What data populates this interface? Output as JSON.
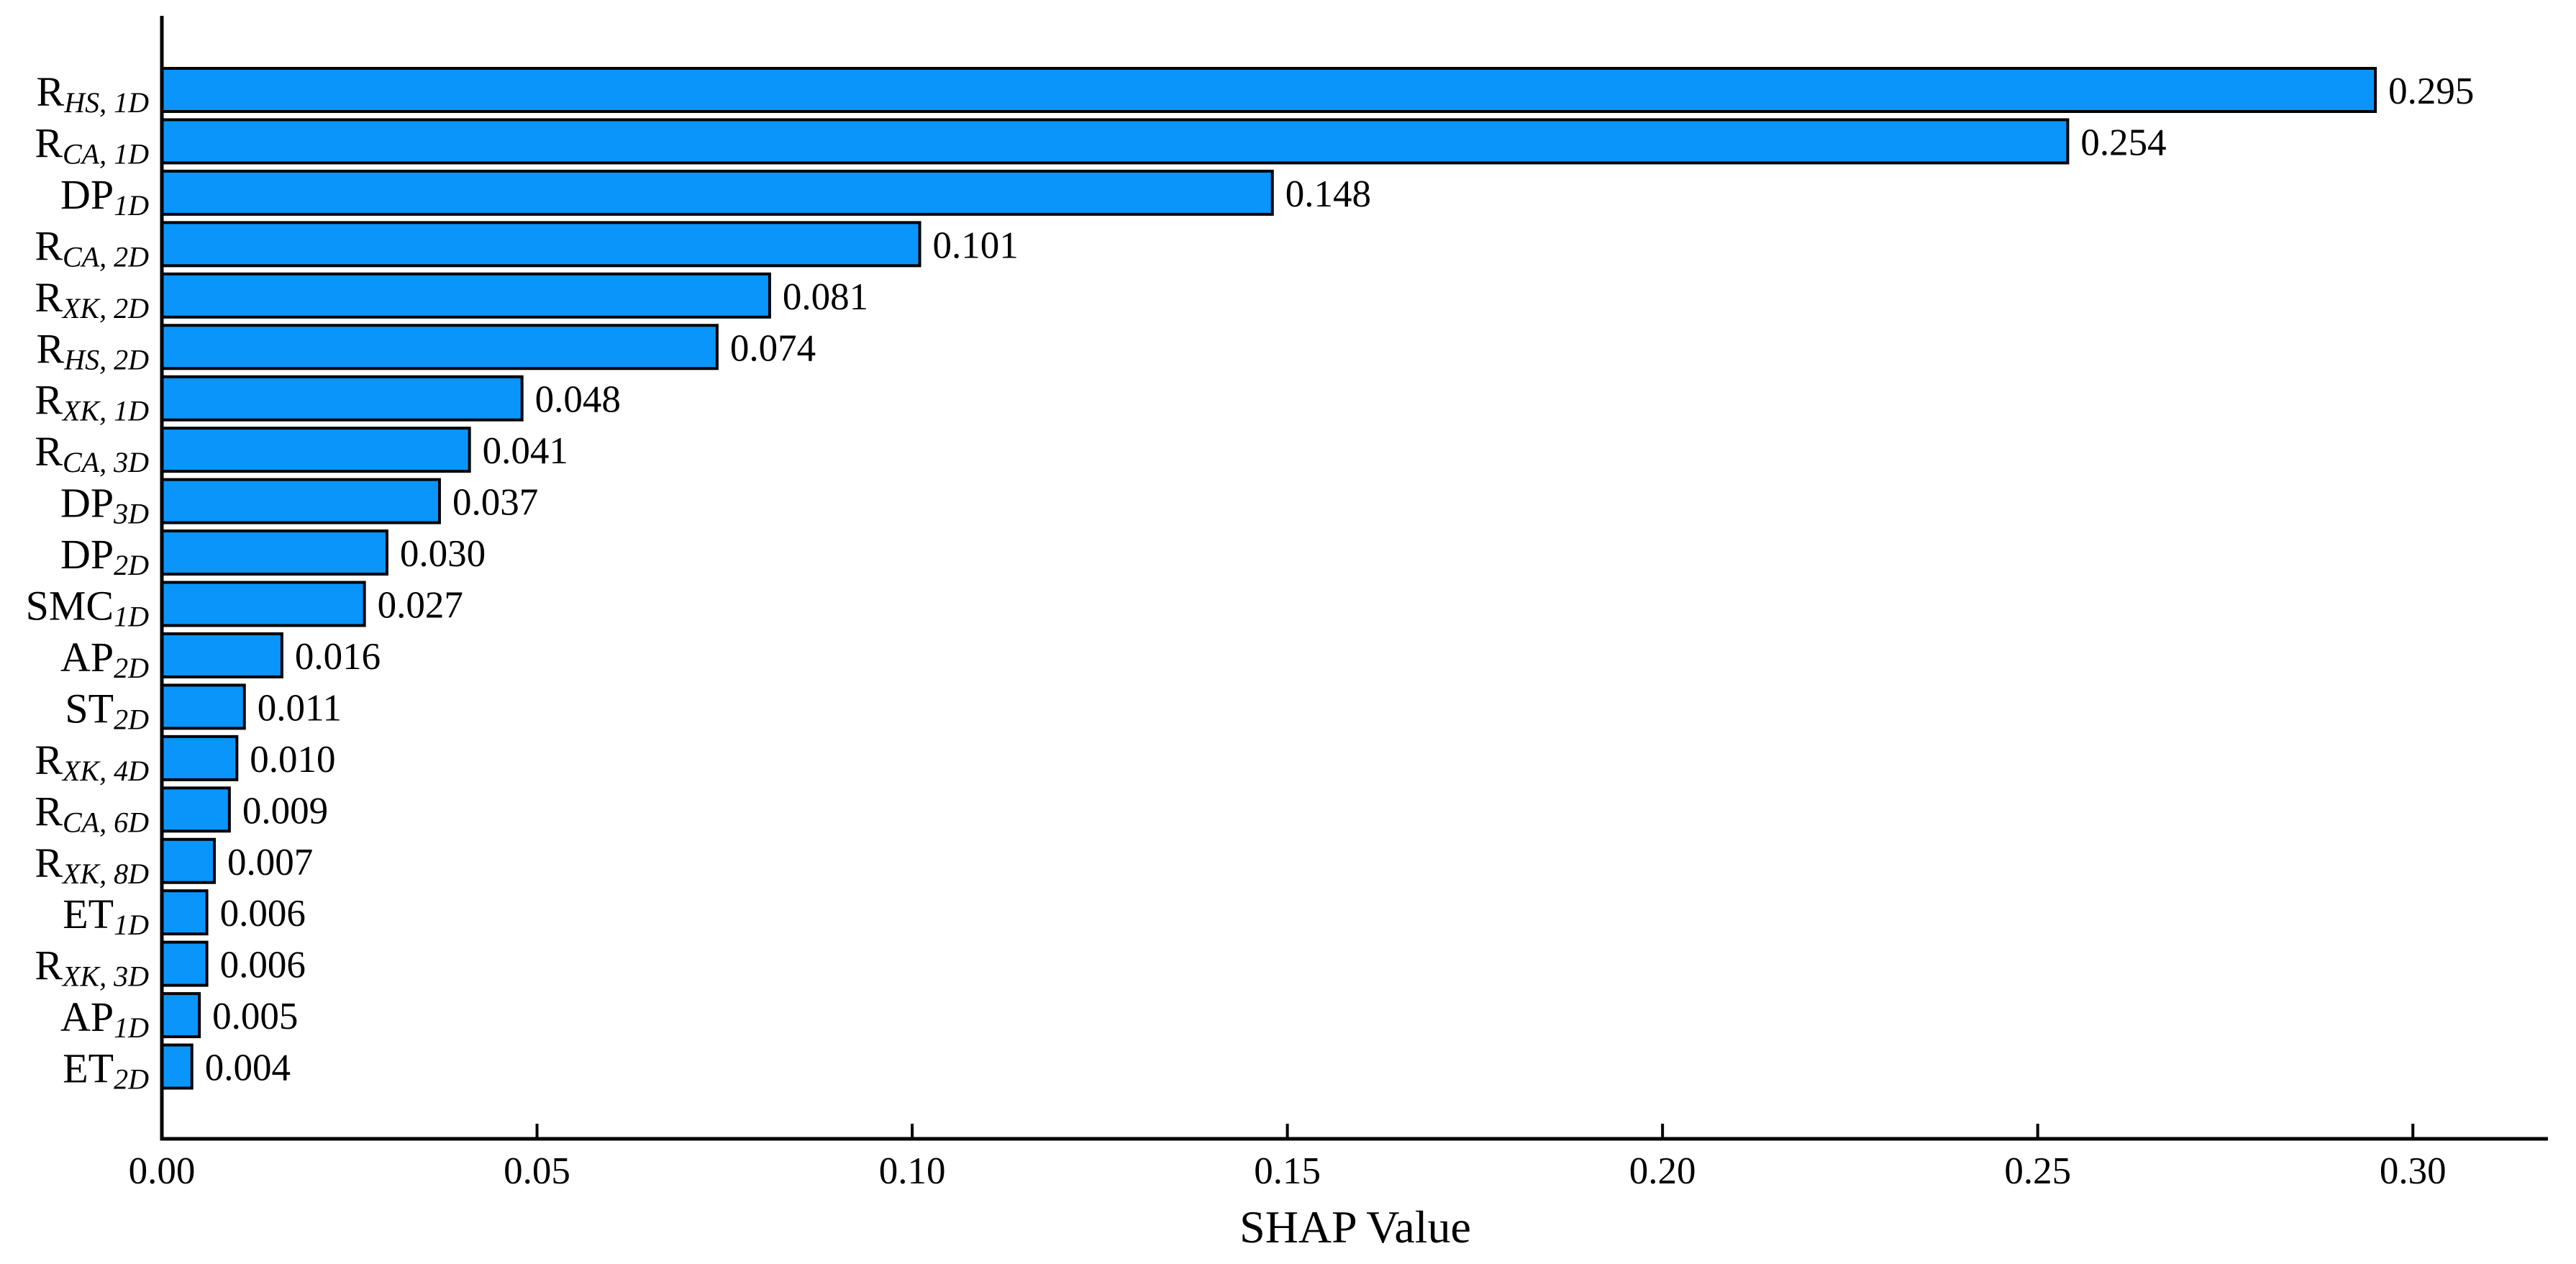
{
  "colors": {
    "background": "#ffffff",
    "bar_fill": "#0a95fb",
    "bar_edge": "#000000",
    "axis": "#000000",
    "text": "#000000"
  },
  "chart_data": {
    "type": "bar",
    "orientation": "horizontal",
    "title": "",
    "xlabel": "SHAP Value",
    "ylabel": "",
    "xlim": [
      0,
      0.318
    ],
    "grid": false,
    "legend": null,
    "bar_order": "descending, top to bottom",
    "xticks": [
      {
        "value": 0.0,
        "label": "0.00"
      },
      {
        "value": 0.05,
        "label": "0.05"
      },
      {
        "value": 0.1,
        "label": "0.10"
      },
      {
        "value": 0.15,
        "label": "0.15"
      },
      {
        "value": 0.2,
        "label": "0.20"
      },
      {
        "value": 0.25,
        "label": "0.25"
      },
      {
        "value": 0.3,
        "label": "0.30"
      }
    ],
    "bars": [
      {
        "label_main": "R",
        "label_sub": "HS, 1D",
        "value": 0.295,
        "value_label": "0.295"
      },
      {
        "label_main": "R",
        "label_sub": "CA, 1D",
        "value": 0.254,
        "value_label": "0.254"
      },
      {
        "label_main": "DP",
        "label_sub": "1D",
        "value": 0.148,
        "value_label": "0.148"
      },
      {
        "label_main": "R",
        "label_sub": "CA, 2D",
        "value": 0.101,
        "value_label": "0.101"
      },
      {
        "label_main": "R",
        "label_sub": "XK, 2D",
        "value": 0.081,
        "value_label": "0.081"
      },
      {
        "label_main": "R",
        "label_sub": "HS, 2D",
        "value": 0.074,
        "value_label": "0.074"
      },
      {
        "label_main": "R",
        "label_sub": "XK, 1D",
        "value": 0.048,
        "value_label": "0.048"
      },
      {
        "label_main": "R",
        "label_sub": "CA, 3D",
        "value": 0.041,
        "value_label": "0.041"
      },
      {
        "label_main": "DP",
        "label_sub": "3D",
        "value": 0.037,
        "value_label": "0.037"
      },
      {
        "label_main": "DP",
        "label_sub": "2D",
        "value": 0.03,
        "value_label": "0.030"
      },
      {
        "label_main": "SMC",
        "label_sub": "1D",
        "value": 0.027,
        "value_label": "0.027"
      },
      {
        "label_main": "AP",
        "label_sub": "2D",
        "value": 0.016,
        "value_label": "0.016"
      },
      {
        "label_main": "ST",
        "label_sub": "2D",
        "value": 0.011,
        "value_label": "0.011"
      },
      {
        "label_main": "R",
        "label_sub": "XK, 4D",
        "value": 0.01,
        "value_label": "0.010"
      },
      {
        "label_main": "R",
        "label_sub": "CA, 6D",
        "value": 0.009,
        "value_label": "0.009"
      },
      {
        "label_main": "R",
        "label_sub": "XK, 8D",
        "value": 0.007,
        "value_label": "0.007"
      },
      {
        "label_main": "ET",
        "label_sub": "1D",
        "value": 0.006,
        "value_label": "0.006"
      },
      {
        "label_main": "R",
        "label_sub": "XK, 3D",
        "value": 0.006,
        "value_label": "0.006"
      },
      {
        "label_main": "AP",
        "label_sub": "1D",
        "value": 0.005,
        "value_label": "0.005"
      },
      {
        "label_main": "ET",
        "label_sub": "2D",
        "value": 0.004,
        "value_label": "0.004"
      }
    ]
  }
}
